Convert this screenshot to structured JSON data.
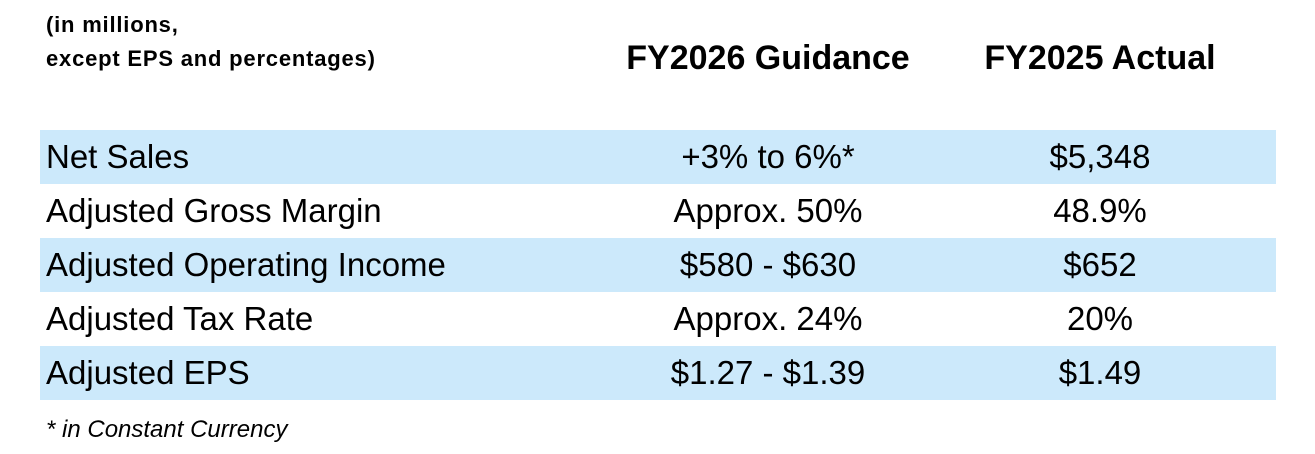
{
  "header_note": {
    "line1": "(in millions,",
    "line2": "except EPS and percentages)"
  },
  "columns": {
    "guidance": "FY2026 Guidance",
    "actual": "FY2025 Actual"
  },
  "rows": [
    {
      "label": "Net Sales",
      "guidance": "+3% to 6%*",
      "actual": "$5,348"
    },
    {
      "label": "Adjusted Gross Margin",
      "guidance": "Approx. 50%",
      "actual": "48.9%"
    },
    {
      "label": "Adjusted Operating Income",
      "guidance": "$580 - $630",
      "actual": "$652"
    },
    {
      "label": "Adjusted Tax Rate",
      "guidance": "Approx. 24%",
      "actual": "20%"
    },
    {
      "label": "Adjusted EPS",
      "guidance": "$1.27 - $1.39",
      "actual": "$1.49"
    }
  ],
  "footnote": "* in Constant Currency",
  "colors": {
    "shaded_row": "#cce9fb",
    "text": "#000000",
    "background": "#ffffff"
  }
}
